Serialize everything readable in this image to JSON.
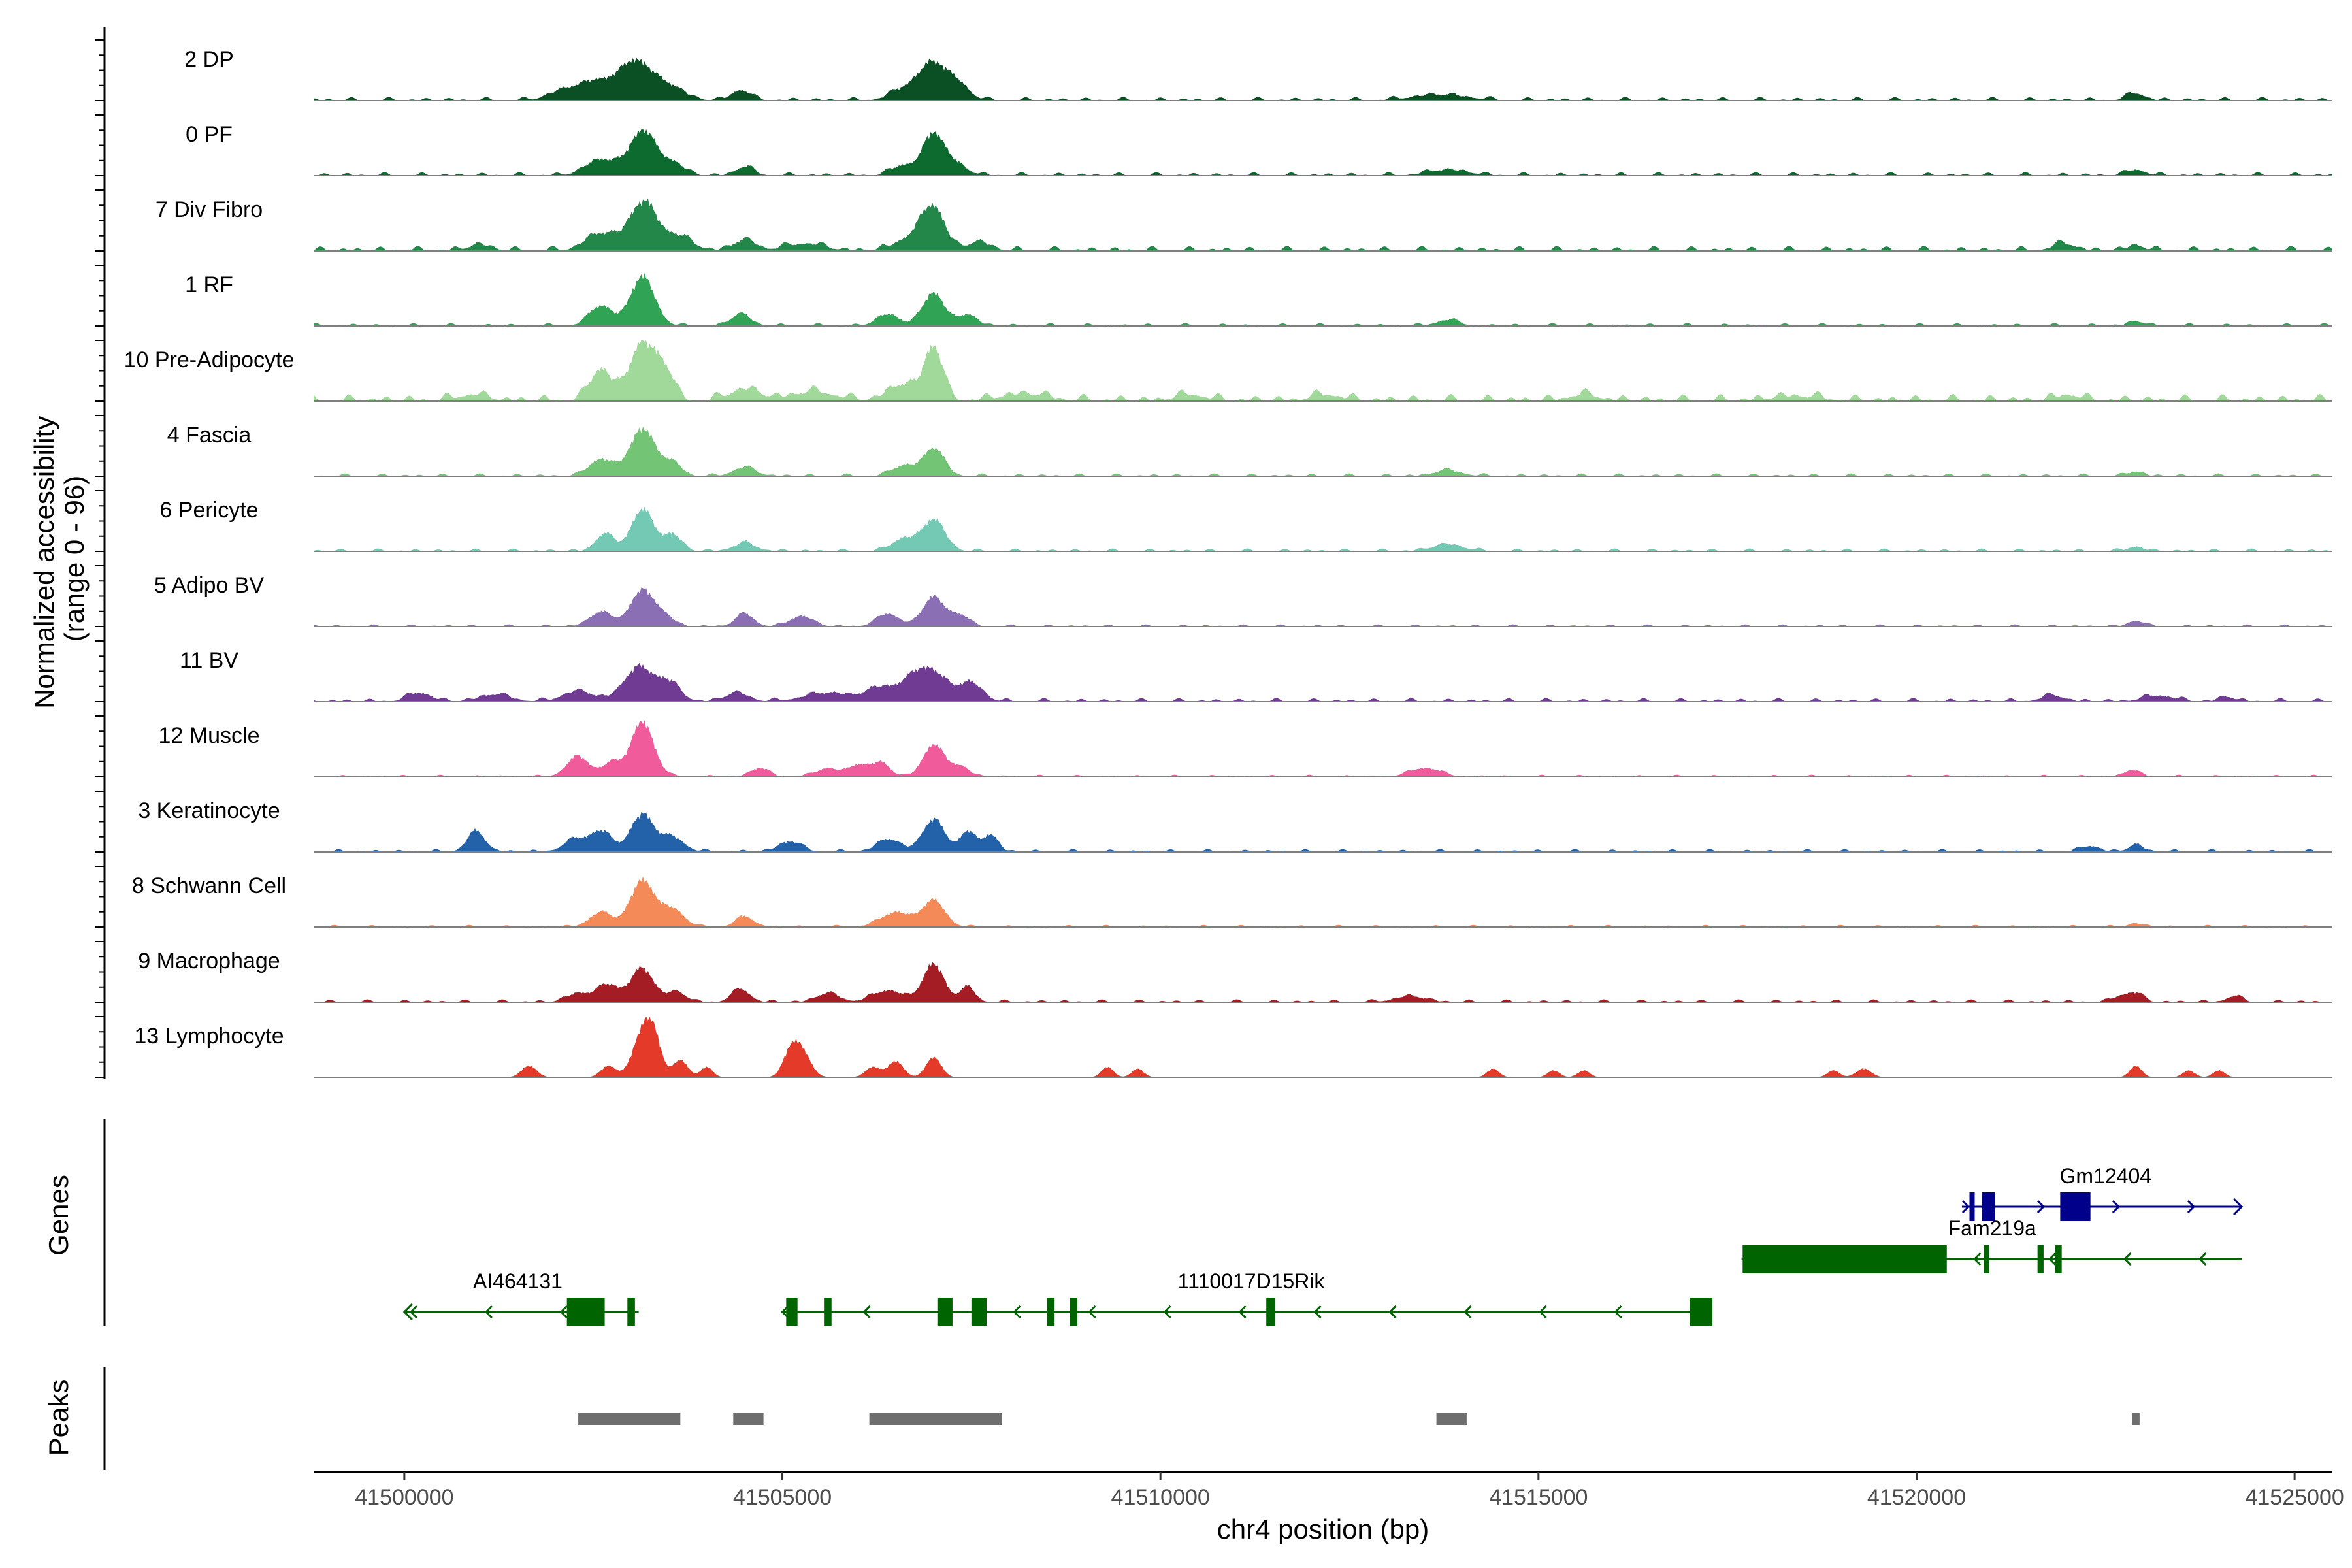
{
  "chart_data": {
    "type": "area",
    "title": "",
    "ylabel_line1": "Normalized accessibility",
    "ylabel_line2": "(range 0 - 96)",
    "y_range": [
      0,
      96
    ],
    "xlabel": "chr4 position (bp)",
    "xlim": [
      41498800,
      41525500
    ],
    "x_ticks": [
      41500000,
      41505000,
      41510000,
      41515000,
      41520000,
      41525000
    ],
    "x_tick_labels": [
      "41500000",
      "41505000",
      "41510000",
      "41515000",
      "41520000",
      "41525000"
    ],
    "panel_labels": {
      "genes": "Genes",
      "peaks": "Peaks"
    },
    "tracks": [
      {
        "name": "2 DP",
        "color": "#0b4f24",
        "bg": 0.05,
        "peaks": [
          [
            41502100,
            200,
            0.15
          ],
          [
            41502600,
            260,
            0.35
          ],
          [
            41503080,
            190,
            0.62
          ],
          [
            41503500,
            200,
            0.25
          ],
          [
            41504450,
            120,
            0.18
          ],
          [
            41506600,
            180,
            0.18
          ],
          [
            41507000,
            190,
            0.65
          ],
          [
            41507350,
            140,
            0.22
          ],
          [
            41513700,
            350,
            0.1
          ],
          [
            41522900,
            120,
            0.12
          ]
        ]
      },
      {
        "name": "0 PF",
        "color": "#0e6b30",
        "bg": 0.05,
        "peaks": [
          [
            41502600,
            200,
            0.28
          ],
          [
            41503150,
            170,
            0.78
          ],
          [
            41503550,
            150,
            0.22
          ],
          [
            41504500,
            120,
            0.15
          ],
          [
            41506600,
            150,
            0.18
          ],
          [
            41507000,
            140,
            0.72
          ],
          [
            41507300,
            150,
            0.18
          ],
          [
            41513800,
            260,
            0.1
          ],
          [
            41522900,
            120,
            0.1
          ]
        ]
      },
      {
        "name": "7 Div Fibro",
        "color": "#23874a",
        "bg": 0.07,
        "peaks": [
          [
            41501000,
            150,
            0.1
          ],
          [
            41502600,
            200,
            0.3
          ],
          [
            41503150,
            180,
            0.82
          ],
          [
            41503600,
            200,
            0.25
          ],
          [
            41504500,
            150,
            0.18
          ],
          [
            41505300,
            250,
            0.12
          ],
          [
            41506700,
            200,
            0.22
          ],
          [
            41507000,
            150,
            0.72
          ],
          [
            41507600,
            150,
            0.15
          ],
          [
            41521950,
            150,
            0.12
          ],
          [
            41522900,
            100,
            0.1
          ]
        ]
      },
      {
        "name": "1 RF",
        "color": "#31a354",
        "bg": 0.04,
        "peaks": [
          [
            41502600,
            150,
            0.35
          ],
          [
            41503150,
            160,
            0.85
          ],
          [
            41504450,
            120,
            0.22
          ],
          [
            41506400,
            150,
            0.2
          ],
          [
            41507000,
            140,
            0.58
          ],
          [
            41507450,
            120,
            0.2
          ],
          [
            41513800,
            150,
            0.1
          ],
          [
            41522900,
            100,
            0.08
          ]
        ]
      },
      {
        "name": "10 Pre-Adipocyte",
        "color": "#a1d99b",
        "bg": 0.1,
        "peaks": [
          [
            41500900,
            200,
            0.1
          ],
          [
            41502600,
            140,
            0.55
          ],
          [
            41503150,
            170,
            1.0
          ],
          [
            41503450,
            120,
            0.45
          ],
          [
            41504500,
            200,
            0.2
          ],
          [
            41505400,
            300,
            0.15
          ],
          [
            41506600,
            200,
            0.28
          ],
          [
            41507000,
            120,
            0.92
          ],
          [
            41508200,
            300,
            0.12
          ],
          [
            41510400,
            200,
            0.1
          ],
          [
            41512200,
            200,
            0.1
          ],
          [
            41515600,
            200,
            0.1
          ],
          [
            41518400,
            300,
            0.08
          ],
          [
            41522000,
            150,
            0.1
          ]
        ]
      },
      {
        "name": "4 Fascia",
        "color": "#74c476",
        "bg": 0.04,
        "peaks": [
          [
            41502600,
            150,
            0.3
          ],
          [
            41503150,
            170,
            0.82
          ],
          [
            41503550,
            120,
            0.22
          ],
          [
            41504500,
            150,
            0.15
          ],
          [
            41506600,
            150,
            0.18
          ],
          [
            41507000,
            140,
            0.48
          ],
          [
            41513800,
            180,
            0.1
          ],
          [
            41522900,
            100,
            0.08
          ]
        ]
      },
      {
        "name": "6 Pericyte",
        "color": "#74c9b4",
        "bg": 0.04,
        "peaks": [
          [
            41502650,
            120,
            0.3
          ],
          [
            41503150,
            150,
            0.72
          ],
          [
            41503550,
            120,
            0.28
          ],
          [
            41504500,
            150,
            0.14
          ],
          [
            41506600,
            150,
            0.22
          ],
          [
            41507000,
            150,
            0.55
          ],
          [
            41513800,
            200,
            0.12
          ],
          [
            41522900,
            100,
            0.08
          ]
        ]
      },
      {
        "name": "5 Adipo BV",
        "color": "#8a6fb5",
        "bg": 0.03,
        "peaks": [
          [
            41502600,
            150,
            0.25
          ],
          [
            41503150,
            160,
            0.62
          ],
          [
            41503450,
            120,
            0.15
          ],
          [
            41504500,
            120,
            0.22
          ],
          [
            41505250,
            150,
            0.18
          ],
          [
            41506400,
            150,
            0.22
          ],
          [
            41507000,
            140,
            0.52
          ],
          [
            41507350,
            120,
            0.2
          ],
          [
            41522900,
            100,
            0.1
          ]
        ]
      },
      {
        "name": "11 BV",
        "color": "#6f3b93",
        "bg": 0.05,
        "peaks": [
          [
            41500200,
            150,
            0.15
          ],
          [
            41501200,
            200,
            0.12
          ],
          [
            41502300,
            200,
            0.18
          ],
          [
            41503100,
            200,
            0.58
          ],
          [
            41503500,
            150,
            0.3
          ],
          [
            41504400,
            150,
            0.15
          ],
          [
            41505600,
            300,
            0.15
          ],
          [
            41506300,
            200,
            0.22
          ],
          [
            41506900,
            250,
            0.6
          ],
          [
            41507500,
            150,
            0.3
          ],
          [
            41521800,
            150,
            0.1
          ],
          [
            41523200,
            200,
            0.1
          ],
          [
            41524100,
            100,
            0.08
          ]
        ]
      },
      {
        "name": "12 Muscle",
        "color": "#f05c9b",
        "bg": 0.03,
        "peaks": [
          [
            41502300,
            150,
            0.35
          ],
          [
            41502750,
            120,
            0.25
          ],
          [
            41503150,
            150,
            0.95
          ],
          [
            41504700,
            120,
            0.15
          ],
          [
            41505600,
            150,
            0.15
          ],
          [
            41506000,
            120,
            0.2
          ],
          [
            41506300,
            120,
            0.25
          ],
          [
            41507000,
            140,
            0.55
          ],
          [
            41507350,
            120,
            0.18
          ],
          [
            41513500,
            200,
            0.15
          ],
          [
            41522850,
            100,
            0.12
          ]
        ]
      },
      {
        "name": "3 Keratinocyte",
        "color": "#2361a9",
        "bg": 0.04,
        "peaks": [
          [
            41500950,
            120,
            0.35
          ],
          [
            41502250,
            150,
            0.2
          ],
          [
            41502600,
            150,
            0.35
          ],
          [
            41503150,
            150,
            0.65
          ],
          [
            41503550,
            150,
            0.25
          ],
          [
            41505100,
            150,
            0.18
          ],
          [
            41506400,
            150,
            0.22
          ],
          [
            41507000,
            150,
            0.55
          ],
          [
            41507450,
            100,
            0.35
          ],
          [
            41507750,
            100,
            0.3
          ],
          [
            41522300,
            120,
            0.1
          ],
          [
            41522900,
            100,
            0.12
          ]
        ]
      },
      {
        "name": "8 Schwann Cell",
        "color": "#f48a57",
        "bg": 0.03,
        "peaks": [
          [
            41502600,
            150,
            0.25
          ],
          [
            41503150,
            160,
            0.8
          ],
          [
            41503550,
            150,
            0.3
          ],
          [
            41504500,
            120,
            0.18
          ],
          [
            41506500,
            200,
            0.25
          ],
          [
            41507000,
            150,
            0.45
          ],
          [
            41522900,
            100,
            0.06
          ]
        ]
      },
      {
        "name": "9 Macrophage",
        "color": "#a41c24",
        "bg": 0.04,
        "peaks": [
          [
            41502300,
            150,
            0.15
          ],
          [
            41502700,
            150,
            0.3
          ],
          [
            41503150,
            150,
            0.58
          ],
          [
            41503600,
            120,
            0.18
          ],
          [
            41504450,
            120,
            0.22
          ],
          [
            41505600,
            150,
            0.15
          ],
          [
            41506400,
            200,
            0.2
          ],
          [
            41507000,
            140,
            0.65
          ],
          [
            41507450,
            100,
            0.25
          ],
          [
            41513300,
            200,
            0.1
          ],
          [
            41522700,
            100,
            0.1
          ],
          [
            41522900,
            100,
            0.15
          ],
          [
            41524200,
            100,
            0.1
          ]
        ]
      },
      {
        "name": "13 Lymphocyte",
        "color": "#e43a2a",
        "bg": 0.0,
        "peaks": [
          [
            41501650,
            100,
            0.2
          ],
          [
            41502700,
            100,
            0.2
          ],
          [
            41503150,
            130,
            0.75
          ],
          [
            41503300,
            100,
            0.55
          ],
          [
            41503650,
            100,
            0.3
          ],
          [
            41504000,
            80,
            0.18
          ],
          [
            41505100,
            100,
            0.35
          ],
          [
            41505250,
            120,
            0.45
          ],
          [
            41506200,
            100,
            0.18
          ],
          [
            41506500,
            100,
            0.28
          ],
          [
            41507000,
            100,
            0.35
          ],
          [
            41509300,
            80,
            0.18
          ],
          [
            41509700,
            80,
            0.15
          ],
          [
            41514400,
            80,
            0.15
          ],
          [
            41515200,
            80,
            0.12
          ],
          [
            41515600,
            80,
            0.12
          ],
          [
            41518900,
            80,
            0.12
          ],
          [
            41519300,
            100,
            0.15
          ],
          [
            41522900,
            80,
            0.2
          ],
          [
            41523600,
            80,
            0.12
          ],
          [
            41524000,
            80,
            0.12
          ]
        ]
      }
    ],
    "genes": [
      {
        "name": "Gm12404",
        "strand": "+",
        "color": "#00008b",
        "row": 0,
        "span": [
          41520600,
          41524300
        ],
        "exons": [
          [
            41520700,
            41520740
          ],
          [
            41520860,
            41521040
          ],
          [
            41521900,
            41522300
          ]
        ],
        "label_x": 41522500
      },
      {
        "name": "Fam219a",
        "strand": "-",
        "color": "#006400",
        "row": 1,
        "span": [
          41517700,
          41524300
        ],
        "exons": [
          [
            41517700,
            41520400
          ],
          [
            41520890,
            41520940
          ],
          [
            41521600,
            41521680
          ],
          [
            41521830,
            41521920
          ]
        ],
        "label_x": 41521000
      },
      {
        "name": "AI464131",
        "strand": "-",
        "color": "#006400",
        "row": 2,
        "span": [
          41500000,
          41503100
        ],
        "exons": [
          [
            41502150,
            41502650
          ],
          [
            41502950,
            41503050
          ]
        ],
        "label_x": 41501500
      },
      {
        "name": "1110017D15Rik",
        "strand": "-",
        "color": "#006400",
        "row": 2,
        "span": [
          41505000,
          41517300
        ],
        "exons": [
          [
            41505050,
            41505200
          ],
          [
            41505550,
            41505650
          ],
          [
            41507050,
            41507250
          ],
          [
            41507500,
            41507700
          ],
          [
            41508500,
            41508600
          ],
          [
            41508800,
            41508900
          ],
          [
            41511400,
            41511520
          ],
          [
            41517000,
            41517300
          ]
        ],
        "label_x": 41511200
      }
    ],
    "peaks": [
      [
        41502300,
        41503650
      ],
      [
        41504350,
        41504750
      ],
      [
        41506150,
        41507900
      ],
      [
        41513650,
        41514050
      ],
      [
        41522850,
        41522950
      ]
    ]
  }
}
